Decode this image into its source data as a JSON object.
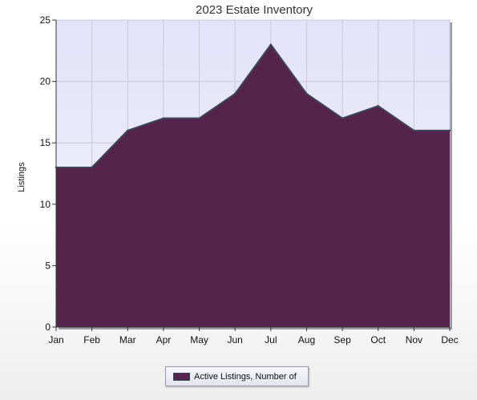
{
  "chart_data": {
    "type": "area",
    "title": "2023 Estate Inventory",
    "ylabel": "Listings",
    "xlabel": "",
    "categories": [
      "Jan",
      "Feb",
      "Mar",
      "Apr",
      "May",
      "Jun",
      "Jul",
      "Aug",
      "Sep",
      "Oct",
      "Nov",
      "Dec"
    ],
    "ylim": [
      0,
      25
    ],
    "yticks": [
      "0",
      "5",
      "10",
      "15",
      "20",
      "25"
    ],
    "grid": true,
    "legend_position": "bottom-center",
    "series": [
      {
        "name": "Active Listings, Number of",
        "values": [
          13,
          13,
          16,
          17,
          17,
          19,
          23,
          19,
          17,
          18,
          16,
          16
        ],
        "color": "#55244a"
      }
    ]
  },
  "colors": {
    "plot_background": "#e9e9fb",
    "grid": "#c8c8d8",
    "outline": "#3c4658"
  }
}
